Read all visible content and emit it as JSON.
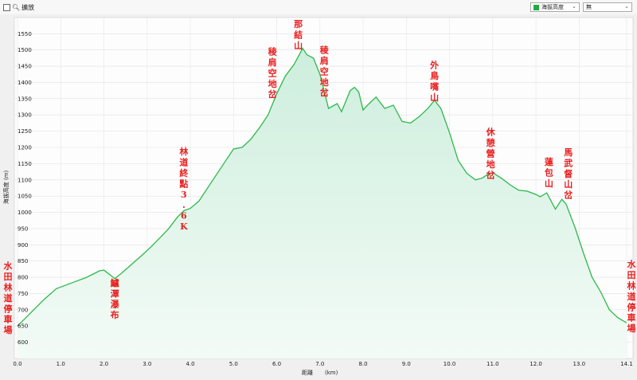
{
  "toolbar": {
    "zoom_label": "擴放",
    "series_select": "海拔高度",
    "second_select": "無"
  },
  "chart_data": {
    "type": "area",
    "xlabel": "距離",
    "xunit": "(km)",
    "ylabel": "海拔高度 (m)",
    "xlim": [
      0,
      14.1
    ],
    "ylim": [
      550,
      1590
    ],
    "x_ticks": [
      0.0,
      1.0,
      2.0,
      3.0,
      4.0,
      5.0,
      6.0,
      7.0,
      8.0,
      9.0,
      10.0,
      11.0,
      12.0,
      13.0,
      14.1
    ],
    "y_ticks": [
      600,
      650,
      700,
      750,
      800,
      850,
      900,
      950,
      1000,
      1050,
      1100,
      1150,
      1200,
      1250,
      1300,
      1350,
      1400,
      1450,
      1500,
      1550
    ],
    "colors": {
      "line": "#2db84a",
      "fill_top": "#cdeedd",
      "fill_bottom": "#f3fbf6",
      "annotation": "#e8201f"
    },
    "x": [
      0,
      0.3,
      0.6,
      0.9,
      1.0,
      1.3,
      1.6,
      1.9,
      2.0,
      2.1,
      2.25,
      2.4,
      2.6,
      2.9,
      3.1,
      3.3,
      3.5,
      3.7,
      3.85,
      4.0,
      4.2,
      4.5,
      4.8,
      5.0,
      5.2,
      5.4,
      5.6,
      5.8,
      6.0,
      6.2,
      6.4,
      6.5,
      6.6,
      6.7,
      6.85,
      7.0,
      7.2,
      7.4,
      7.5,
      7.7,
      7.8,
      7.9,
      8.0,
      8.1,
      8.3,
      8.5,
      8.7,
      8.9,
      9.1,
      9.3,
      9.5,
      9.65,
      9.8,
      10.0,
      10.2,
      10.4,
      10.6,
      10.75,
      10.9,
      11.0,
      11.2,
      11.4,
      11.6,
      11.8,
      12.0,
      12.1,
      12.25,
      12.45,
      12.6,
      12.7,
      12.9,
      13.1,
      13.3,
      13.5,
      13.7,
      13.9,
      14.1
    ],
    "y": [
      650,
      690,
      730,
      765,
      770,
      785,
      800,
      820,
      822,
      812,
      796,
      812,
      835,
      870,
      895,
      922,
      950,
      985,
      1005,
      1012,
      1035,
      1095,
      1155,
      1195,
      1200,
      1225,
      1260,
      1300,
      1365,
      1420,
      1455,
      1480,
      1505,
      1485,
      1475,
      1425,
      1320,
      1335,
      1310,
      1375,
      1385,
      1370,
      1315,
      1330,
      1355,
      1320,
      1330,
      1280,
      1275,
      1295,
      1320,
      1345,
      1320,
      1245,
      1160,
      1120,
      1100,
      1105,
      1118,
      1122,
      1105,
      1085,
      1068,
      1065,
      1055,
      1048,
      1060,
      1010,
      1040,
      1025,
      955,
      875,
      800,
      755,
      700,
      675,
      660
    ],
    "annotations": [
      {
        "text": "水田林道停車場",
        "x": 0.0,
        "y": 850,
        "side": "left"
      },
      {
        "text": "鱸潭瀑布",
        "x": 2.25,
        "y": 798
      },
      {
        "text": "林道終點3.6K",
        "x": 3.85,
        "y": 1202
      },
      {
        "text": "稜肩空地岔",
        "x": 5.9,
        "y": 1510
      },
      {
        "text": "那結山",
        "x": 6.5,
        "y": 1595
      },
      {
        "text": "稜肩空地岔",
        "x": 7.1,
        "y": 1515
      },
      {
        "text": "外鳥嘴山",
        "x": 9.65,
        "y": 1468
      },
      {
        "text": "休憩營地岔",
        "x": 10.95,
        "y": 1262
      },
      {
        "text": "蓮包山",
        "x": 12.3,
        "y": 1170
      },
      {
        "text": "馬武督山岔",
        "x": 12.75,
        "y": 1200
      },
      {
        "text": "水田林道停車場",
        "x": 14.1,
        "y": 855,
        "side": "right"
      }
    ]
  }
}
